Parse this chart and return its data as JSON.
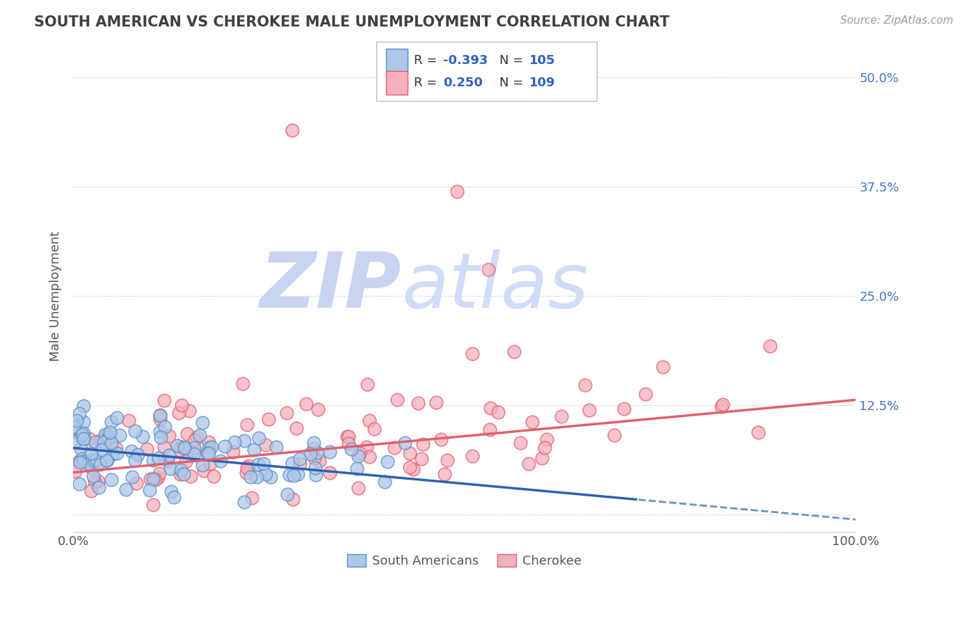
{
  "title": "SOUTH AMERICAN VS CHEROKEE MALE UNEMPLOYMENT CORRELATION CHART",
  "source_text": "Source: ZipAtlas.com",
  "ylabel": "Male Unemployment",
  "xlim": [
    0.0,
    1.0
  ],
  "ylim": [
    -0.01,
    0.52
  ],
  "plot_ylim": [
    0.0,
    0.5
  ],
  "yticks": [
    0.0,
    0.125,
    0.25,
    0.375,
    0.5
  ],
  "right_ytick_labels": [
    "12.5%",
    "25.0%",
    "37.5%",
    "50.0%"
  ],
  "xtick_labels": [
    "0.0%",
    "100.0%"
  ],
  "series": [
    {
      "name": "South Americans",
      "color": "#aec6e8",
      "edge_color": "#5590c8",
      "R": -0.393,
      "N": 105,
      "trend_color": "#3060b0",
      "trend_linestyle": "solid"
    },
    {
      "name": "Cherokee",
      "color": "#f4b0bc",
      "edge_color": "#e06070",
      "R": 0.25,
      "N": 109,
      "trend_color": "#e06070",
      "trend_linestyle": "solid"
    }
  ],
  "legend_text_color": "#303030",
  "legend_value_color": "#3060c0",
  "watermark_zip_color": "#c8d4f0",
  "watermark_atlas_color": "#d0ddf8",
  "background_color": "#ffffff",
  "grid_color": "#bbbbbb",
  "title_color": "#404040",
  "seed": 42
}
